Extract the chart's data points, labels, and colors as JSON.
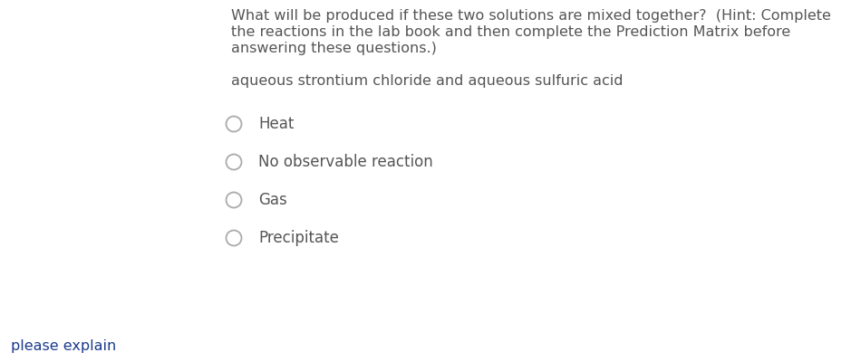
{
  "background_color": "#ffffff",
  "question_text_lines": [
    "What will be produced if these two solutions are mixed together?  (Hint: Complete",
    "the reactions in the lab book and then complete the Prediction Matrix before",
    "answering these questions.)"
  ],
  "subtitle_text": "aqueous strontium chloride and aqueous sulfuric acid",
  "options": [
    "Heat",
    "No observable reaction",
    "Gas",
    "Precipitate"
  ],
  "footer_text": "please explain",
  "text_color": "#555555",
  "footer_color": "#1a3a8c",
  "radio_color": "#aaaaaa",
  "font_size_question": 11.5,
  "font_size_subtitle": 11.5,
  "font_size_options": 12.0,
  "font_size_footer": 11.5,
  "fig_width": 9.5,
  "fig_height": 4.0,
  "dpi": 100
}
